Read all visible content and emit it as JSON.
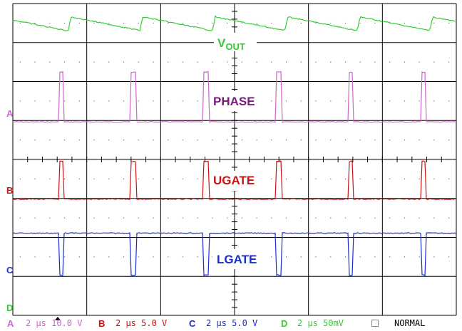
{
  "colors": {
    "background": "#ffffff",
    "grid": "#000000",
    "vout": "#33cc33",
    "phase": "#cc66cc",
    "phase_label": "#7b1a7b",
    "ugate": "#cc1111",
    "lgate": "#1a2bcc",
    "status_text": "#000000"
  },
  "labels": {
    "vout_main": "V",
    "vout_sub": "OUT",
    "phase": "PHASE",
    "ugate": "UGATE",
    "lgate": "LGATE"
  },
  "channel_markers": {
    "a": "A",
    "b": "B",
    "c": "C",
    "d": "D"
  },
  "status_bar": {
    "a_letter": "A",
    "a_text": "2 µs 10.0 V",
    "b_letter": "B",
    "b_text": "2 µs 5.0 V",
    "c_letter": "C",
    "c_text": "2 µs 5.0 V",
    "d_letter": "D",
    "d_text": "2 µs 50mV",
    "mode_icon": "checkbox-icon",
    "mode_text": "NORMAL"
  },
  "chart_data": {
    "type": "line",
    "title": "",
    "grid": true,
    "divisions": {
      "horizontal": 6,
      "vertical": 8
    },
    "timebase": "2 µs/div",
    "series": [
      {
        "name": "VOUT",
        "channel": "D",
        "scale": "50mV/div",
        "shape": "sawtooth ripple",
        "pulse_positions_div": [
          0.75,
          1.72,
          2.7,
          3.68,
          4.66,
          5.64
        ]
      },
      {
        "name": "PHASE",
        "channel": "A",
        "scale": "10.0 V/div",
        "pulse_positions_div": [
          0.62,
          1.6,
          2.58,
          3.56,
          4.54,
          5.52
        ],
        "pulse_width_div": 0.07
      },
      {
        "name": "UGATE",
        "channel": "B",
        "scale": "5.0 V/div",
        "pulse_positions_div": [
          0.62,
          1.6,
          2.58,
          3.56,
          4.54,
          5.52
        ],
        "pulse_width_div": 0.07
      },
      {
        "name": "LGATE",
        "channel": "C",
        "scale": "5.0 V/div",
        "dip_positions_div": [
          0.62,
          1.6,
          2.58,
          3.56,
          4.54,
          5.52
        ],
        "dip_width_div": 0.07
      }
    ]
  }
}
